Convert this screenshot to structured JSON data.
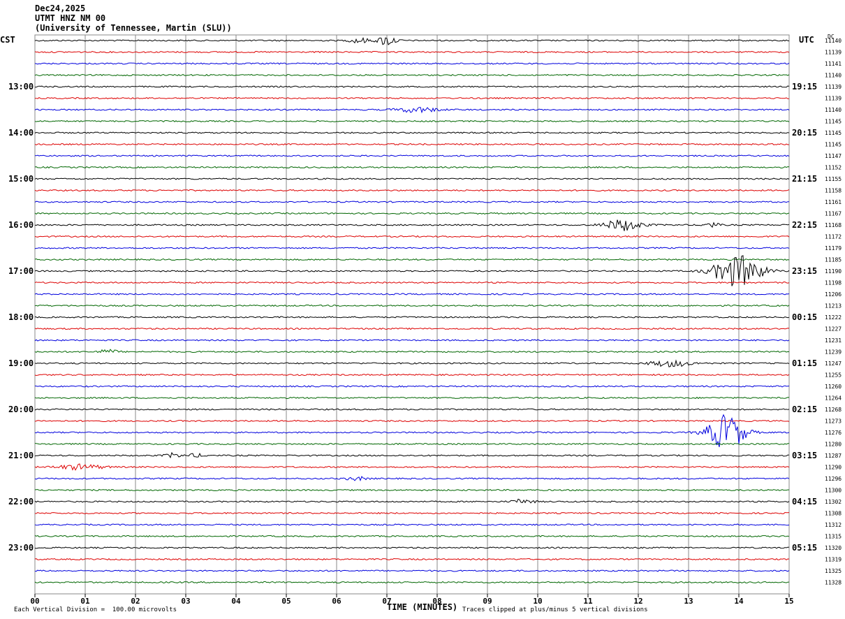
{
  "header": {
    "date": "Dec24,2025",
    "station": "UTMT HNZ NM 00",
    "institution": "(University of Tennessee, Martin (SLU))"
  },
  "left_tz": "CST",
  "right_tz": "UTC",
  "dc_label": "DC",
  "footer": {
    "scale": "Each Vertical Division =  100.00 microvolts",
    "xlabel": "TIME (MINUTES)",
    "clip_note": "Traces clipped at plus/minus 5 vertical divisions"
  },
  "colors": {
    "trace_cycle": [
      "#000000",
      "#dd0000",
      "#0000dd",
      "#006600"
    ],
    "grid": "#888888"
  },
  "chart_data": {
    "type": "helicorder",
    "x_range": [
      0,
      15
    ],
    "x_ticks": [
      "00",
      "01",
      "02",
      "03",
      "04",
      "05",
      "06",
      "07",
      "08",
      "09",
      "10",
      "11",
      "12",
      "13",
      "14",
      "15"
    ],
    "rows_per_hour": 4,
    "row_minutes": 15,
    "left_hour_labels": [
      {
        "row": 4,
        "text": "13:00"
      },
      {
        "row": 8,
        "text": "14:00"
      },
      {
        "row": 12,
        "text": "15:00"
      },
      {
        "row": 16,
        "text": "16:00"
      },
      {
        "row": 20,
        "text": "17:00"
      },
      {
        "row": 24,
        "text": "18:00"
      },
      {
        "row": 28,
        "text": "19:00"
      },
      {
        "row": 32,
        "text": "20:00"
      },
      {
        "row": 36,
        "text": "21:00"
      },
      {
        "row": 40,
        "text": "22:00"
      },
      {
        "row": 44,
        "text": "23:00"
      }
    ],
    "right_hour_labels": [
      {
        "row": 4,
        "text": "19:15"
      },
      {
        "row": 8,
        "text": "20:15"
      },
      {
        "row": 12,
        "text": "21:15"
      },
      {
        "row": 16,
        "text": "22:15"
      },
      {
        "row": 20,
        "text": "23:15"
      },
      {
        "row": 24,
        "text": "00:15"
      },
      {
        "row": 28,
        "text": "01:15"
      },
      {
        "row": 32,
        "text": "02:15"
      },
      {
        "row": 36,
        "text": "03:15"
      },
      {
        "row": 40,
        "text": "04:15"
      },
      {
        "row": 44,
        "text": "05:15"
      }
    ],
    "dc_values": [
      11140,
      11139,
      11141,
      11140,
      11139,
      11139,
      11140,
      11145,
      11145,
      11145,
      11147,
      11152,
      11155,
      11158,
      11161,
      11167,
      11168,
      11172,
      11179,
      11185,
      11190,
      11198,
      11206,
      11213,
      11222,
      11227,
      11231,
      11239,
      11247,
      11255,
      11260,
      11264,
      11268,
      11273,
      11276,
      11280,
      11287,
      11290,
      11296,
      11300,
      11302,
      11308,
      11312,
      11315,
      11320,
      11319,
      11325,
      11328
    ],
    "events": [
      {
        "row": 0,
        "minute": 6.45,
        "amplitude": 0.5,
        "duration": 0.35
      },
      {
        "row": 0,
        "minute": 7.0,
        "amplitude": 0.9,
        "duration": 0.35
      },
      {
        "row": 6,
        "minute": 7.6,
        "amplitude": 0.45,
        "duration": 0.8
      },
      {
        "row": 16,
        "minute": 11.7,
        "amplitude": 1.0,
        "duration": 0.7
      },
      {
        "row": 16,
        "minute": 13.45,
        "amplitude": 0.4,
        "duration": 0.3
      },
      {
        "row": 20,
        "minute": 13.98,
        "amplitude": 2.8,
        "duration": 0.9
      },
      {
        "row": 27,
        "minute": 1.45,
        "amplitude": 0.35,
        "duration": 0.4
      },
      {
        "row": 28,
        "minute": 12.65,
        "amplitude": 0.55,
        "duration": 0.8
      },
      {
        "row": 34,
        "minute": 13.75,
        "amplitude": 3.2,
        "duration": 0.7
      },
      {
        "row": 36,
        "minute": 2.75,
        "amplitude": 0.4,
        "duration": 0.3
      },
      {
        "row": 36,
        "minute": 3.2,
        "amplitude": 0.3,
        "duration": 0.3
      },
      {
        "row": 37,
        "minute": 0.9,
        "amplitude": 0.45,
        "duration": 0.9
      },
      {
        "row": 38,
        "minute": 6.4,
        "amplitude": 0.3,
        "duration": 0.4
      },
      {
        "row": 40,
        "minute": 9.7,
        "amplitude": 0.4,
        "duration": 0.4
      }
    ]
  }
}
